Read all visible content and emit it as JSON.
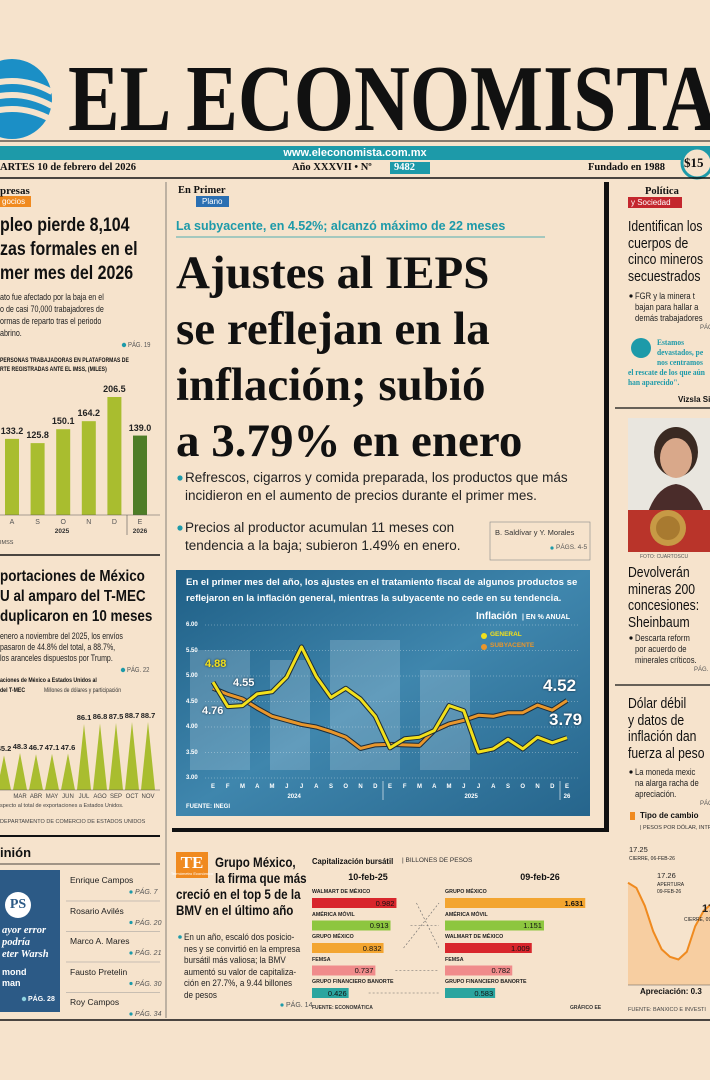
{
  "masthead": {
    "title": "EL ECONOMISTA",
    "url": "www.eleconomista.com.mx",
    "date": "ARTES 10 de febrero del 2026",
    "edition": "Año XXXVII • Nº",
    "number": "9482",
    "founded": "Fundado en 1988",
    "price": "$15"
  },
  "left": {
    "section": "presas",
    "subsection": "gocios",
    "story1": {
      "headline": [
        "pleo pierde 8,104",
        "zas formales en el",
        "mer mes del 2026"
      ],
      "body": [
        "ato fue afectado por la baja en el",
        "o de casi 70,000 trabajadores de",
        "ormas de reparto tras el periodo",
        "abrino."
      ],
      "page": "PÁG. 19"
    },
    "chart1": {
      "type": "bar",
      "title": [
        "PERSONAS TRABAJADORAS EN PLATAFORMAS DE",
        "RTE REGISTRADAS ANTE EL IMSS, (MILES)"
      ],
      "categories": [
        "A",
        "S",
        "O",
        "N",
        "D",
        "E"
      ],
      "values": [
        133.2,
        125.8,
        150.1,
        164.2,
        206.5,
        139
      ],
      "value_labels": [
        "133.2",
        "125.8",
        "150.1",
        "164.2",
        "206.5",
        "139.0"
      ],
      "colors": [
        "#a9bd2f",
        "#a9bd2f",
        "#a9bd2f",
        "#a9bd2f",
        "#a9bd2f",
        "#4e7d27"
      ],
      "years": [
        "2025",
        "2026"
      ],
      "source": "IMSS"
    },
    "story2": {
      "headline": [
        "portaciones de México",
        "U al amparo del T-MEC",
        "duplicaron en 10 meses"
      ],
      "body": [
        "enero a noviembre del 2025, los envíos",
        "pasaron de 44.8% del total, a 88.7%,",
        "los aranceles dispuestos por Trump."
      ],
      "page": "PÁG. 22"
    },
    "chart2": {
      "type": "spike",
      "title": [
        "aciones de México a Estados Unidos al",
        "del T-MEC"
      ],
      "unit": "Millones de dólares y participación",
      "categories": [
        null,
        "MAR",
        "ABR",
        "MAY",
        "JUN",
        "JUL",
        "AGO",
        "SEP",
        "OCT",
        "NOV"
      ],
      "values": [
        45.2,
        48.3,
        46.7,
        47.1,
        47.6,
        86.1,
        86.8,
        87.5,
        88.7,
        88.7
      ],
      "color": "#a9bd2f",
      "note": "specto al total de exportaciones a Estados Unidos.",
      "source": "DEPARTAMENTO DE COMERCIO DE ESTADOS UNIDOS"
    },
    "opinion": {
      "section": "inión",
      "feature": {
        "icon": "PS",
        "lines": [
          "ayor error",
          "podría",
          "eter Warsh"
        ],
        "author": [
          "mond",
          "man"
        ],
        "page": "PÁG. 28"
      },
      "columnists": [
        {
          "name": "Enrique Campos",
          "page": "PÁG. 7"
        },
        {
          "name": "Rosario Avilés",
          "page": "PÁG. 20"
        },
        {
          "name": "Marco A. Mares",
          "page": "PÁG. 21"
        },
        {
          "name": "Fausto Pretelin",
          "page": "PÁG. 30"
        },
        {
          "name": "Roy Campos",
          "page": "PÁG. 34"
        }
      ]
    }
  },
  "center": {
    "section": "En Primer",
    "subsection": "Plano",
    "kicker": "La subyacente, en 4.52%; alcanzó máximo de 22 meses",
    "headline": [
      "Ajustes al IEPS",
      "se reflejan en la",
      "inflación; subió",
      "a 3.79% en enero"
    ],
    "bullets": [
      [
        "Refrescos, cigarros y comida preparada, los productos que más",
        "incidieron en el aumento de precios durante el primer mes."
      ],
      [
        "Precios al productor acumulan 11 meses con",
        "tendencia a la baja; subieron 1.49% en enero."
      ]
    ],
    "byline": "B. Saldívar y Y. Morales",
    "page": "PÁGS. 4-5",
    "chart": {
      "type": "line",
      "caption": [
        "En el primer mes del año, los ajustes en el tratamiento fiscal de algunos productos se",
        "reflejaron en la inflación general, mientras la subyacente no cede en su tendencia."
      ],
      "title": "Inflación",
      "unit": "| EN % ANUAL",
      "categories": [
        "E",
        "F",
        "M",
        "A",
        "M",
        "J",
        "J",
        "A",
        "S",
        "O",
        "N",
        "D",
        "E",
        "F",
        "M",
        "A",
        "M",
        "J",
        "J",
        "A",
        "S",
        "O",
        "N",
        "D",
        "E"
      ],
      "years": [
        "2024",
        "2025",
        "26"
      ],
      "series": [
        {
          "name": "GENERAL",
          "color": "#f2e01c",
          "values": [
            4.88,
            4.4,
            4.42,
            4.65,
            4.69,
            4.98,
            5.57,
            4.99,
            4.58,
            4.76,
            4.55,
            4.21,
            3.59,
            3.77,
            3.8,
            3.93,
            4.42,
            4.32,
            3.51,
            3.57,
            3.76,
            3.57,
            3.8,
            3.69,
            3.79
          ]
        },
        {
          "name": "SUBYACENTE",
          "color": "#e8962c",
          "values": [
            4.76,
            4.64,
            4.55,
            4.37,
            4.21,
            4.13,
            4.05,
            4.0,
            3.91,
            3.8,
            3.58,
            3.65,
            3.66,
            3.65,
            3.64,
            3.93,
            4.06,
            4.13,
            4.23,
            4.21,
            4.28,
            4.28,
            4.43,
            4.33,
            4.52
          ]
        }
      ],
      "ylim": [
        3,
        6
      ],
      "yticks": [
        {
          "value": 3,
          "label": "3.00"
        },
        {
          "value": 3.5,
          "label": "3.50"
        },
        {
          "value": 4,
          "label": "4.00"
        },
        {
          "value": 4.5,
          "label": "4.50"
        },
        {
          "value": 5,
          "label": "5.00"
        },
        {
          "value": 5.5,
          "label": "5.50"
        },
        {
          "value": 6,
          "label": "6.00"
        }
      ],
      "grid": true,
      "point_labels": [
        "4.88",
        "4.55",
        "4.76",
        "4.52",
        "3.79"
      ],
      "source": "FUENTE: INEGI"
    }
  },
  "market": {
    "logo": "TE",
    "logo_caption": "Termómetro Económico",
    "headline": [
      "Grupo México,",
      "la firma que más",
      "creció en el top 5 de la",
      "BMV en el último año"
    ],
    "body": [
      "En un año, escaló dos posicio-",
      "nes y se convirtió en la empresa",
      "bursátil más valiosa; la BMV",
      "aumentó su valor de capitaliza-",
      "ción en 27.7%, a 9.44 billones",
      "de pesos"
    ],
    "page": "PÁG. 14",
    "chart": {
      "type": "hbar",
      "title": "Capitalización bursátil",
      "unit": "| BILLONES DE PESOS",
      "series": [
        {
          "name": "10-feb-25",
          "categories": [
            "WALMART DE MÉXICO",
            "AMÉRICA MÓVIL",
            "GRUPO MÉXICO",
            "FEMSA",
            "GRUPO FINANCIERO BANORTE"
          ],
          "values": [
            0.982,
            0.913,
            0.832,
            0.737,
            0.426
          ],
          "colors": [
            "#d8262c",
            "#8dc63f",
            "#f3a530",
            "#f08b8b",
            "#2aa59f"
          ]
        },
        {
          "name": "09-feb-26",
          "categories": [
            "GRUPO MÉXICO",
            "AMÉRICA MÓVIL",
            "WALMART DE MÉXICO",
            "FEMSA",
            "GRUPO FINANCIERO BANORTE"
          ],
          "values": [
            1.631,
            1.151,
            1.009,
            0.782,
            0.583
          ],
          "colors": [
            "#f3a530",
            "#8dc63f",
            "#d8262c",
            "#f08b8b",
            "#2aa59f"
          ]
        }
      ],
      "source": "FUENTE: ECONOMÁTICA",
      "credit": "GRÁFICO EE"
    }
  },
  "right": {
    "section": "Política",
    "subsection": "y Sociedad",
    "story1": {
      "headline": [
        "Identifican los",
        "cuerpos de",
        "cinco mineros",
        "secuestrados"
      ],
      "bullet": [
        "FGR y la minera t",
        "bajan para hallar a",
        "demás trabajadores"
      ],
      "page": "PÁG"
    },
    "quote": {
      "lines": [
        "Estamos",
        "devastados, pe",
        "nos centramos",
        "el rescate de los que aún",
        "han aparecido\"."
      ],
      "author": "Vizsla Si"
    },
    "photo_credit": "FOTO: CUARTOSCU",
    "story2": {
      "headline": [
        "Devolverán",
        "mineras 200",
        "concesiones:",
        "Sheinbaum"
      ],
      "bullet": [
        "Descarta reform",
        "por acuerdo de",
        "minerales críticos."
      ],
      "page": "PÁG."
    },
    "story3": {
      "headline": [
        "Dólar débil",
        "y datos de",
        "inflación dan",
        "fuerza al peso"
      ],
      "bullet": [
        "La moneda mexic",
        "na alarga racha de",
        "apreciación."
      ],
      "page": "PÁG"
    },
    "fx_chart": {
      "type": "area",
      "title": "Tipo de cambio",
      "unit": "| PESOS POR DÓLAR, INTRADÍA",
      "values": [
        17.25,
        17.23,
        17.16,
        17.06,
        16.99,
        16.96,
        16.95,
        16.98,
        17.08,
        17.14,
        17.17
      ],
      "ylim": [
        16.85,
        17.3
      ],
      "color": "#ef8a1f",
      "labels": [
        "17.25",
        "CIERRE, 06-FEB-26",
        "17.26",
        "APERTURA",
        "09-FEB-26",
        "CIERRE, 09",
        "17"
      ],
      "footer": "Apreciación: 0.3",
      "source": "FUENTE: BANXICO E INVESTI"
    }
  }
}
